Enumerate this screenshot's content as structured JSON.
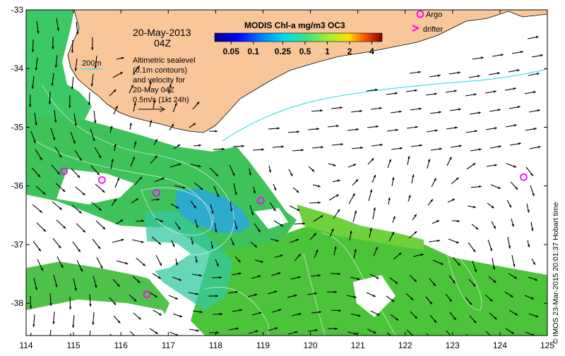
{
  "map": {
    "date_line1": "20-May-2013",
    "date_line2": "04Z",
    "contour_legend": "200m",
    "info_lines": [
      "Altimetric sealevel",
      "(0.1m contours)",
      "and velocity for",
      "20-May 04Z",
      "0.5m/s (1kt 24h)"
    ],
    "colorbar": {
      "title": "MODIS Chl-a mg/m3 OC3",
      "tick_labels": [
        "0.05",
        "0.1",
        "0.25",
        "0.5",
        "1",
        "2",
        "4"
      ],
      "tick_values": [
        0.05,
        0.1,
        0.25,
        0.5,
        1,
        2,
        4
      ],
      "range": [
        0.03,
        5.5
      ],
      "scale": "log"
    },
    "legend": {
      "argo_label": "Argo",
      "drifter_label": "drifter",
      "marker_color": "#ff00ff"
    },
    "credit": "© IMOS 23-Mar-2015 20:01:37 Hobart time",
    "x_axis": {
      "ticks": [
        "114",
        "115",
        "116",
        "117",
        "118",
        "119",
        "120",
        "121",
        "122",
        "123",
        "124",
        "125"
      ],
      "values": [
        114,
        115,
        116,
        117,
        118,
        119,
        120,
        121,
        122,
        123,
        124,
        125
      ],
      "range": [
        114,
        125
      ]
    },
    "y_axis": {
      "ticks": [
        "-33",
        "-34",
        "-35",
        "-36",
        "-37",
        "-38"
      ],
      "values": [
        -33,
        -34,
        -35,
        -36,
        -37,
        -38
      ],
      "range": [
        -38.55,
        -33
      ]
    },
    "argo_floats": [
      {
        "lon": 114.8,
        "lat": -35.75
      },
      {
        "lon": 115.6,
        "lat": -35.9
      },
      {
        "lon": 116.75,
        "lat": -36.12
      },
      {
        "lon": 118.95,
        "lat": -36.25
      },
      {
        "lon": 124.5,
        "lat": -35.85
      },
      {
        "lon": 116.55,
        "lat": -37.85
      }
    ],
    "colors": {
      "land": "#f9c699",
      "chl_green": "#4fc83c",
      "chl_teal": "#36c89a",
      "chl_blue": "#2aa7e0",
      "current_cyan": "#40e0e0",
      "contour": "#e8f4e8"
    }
  }
}
